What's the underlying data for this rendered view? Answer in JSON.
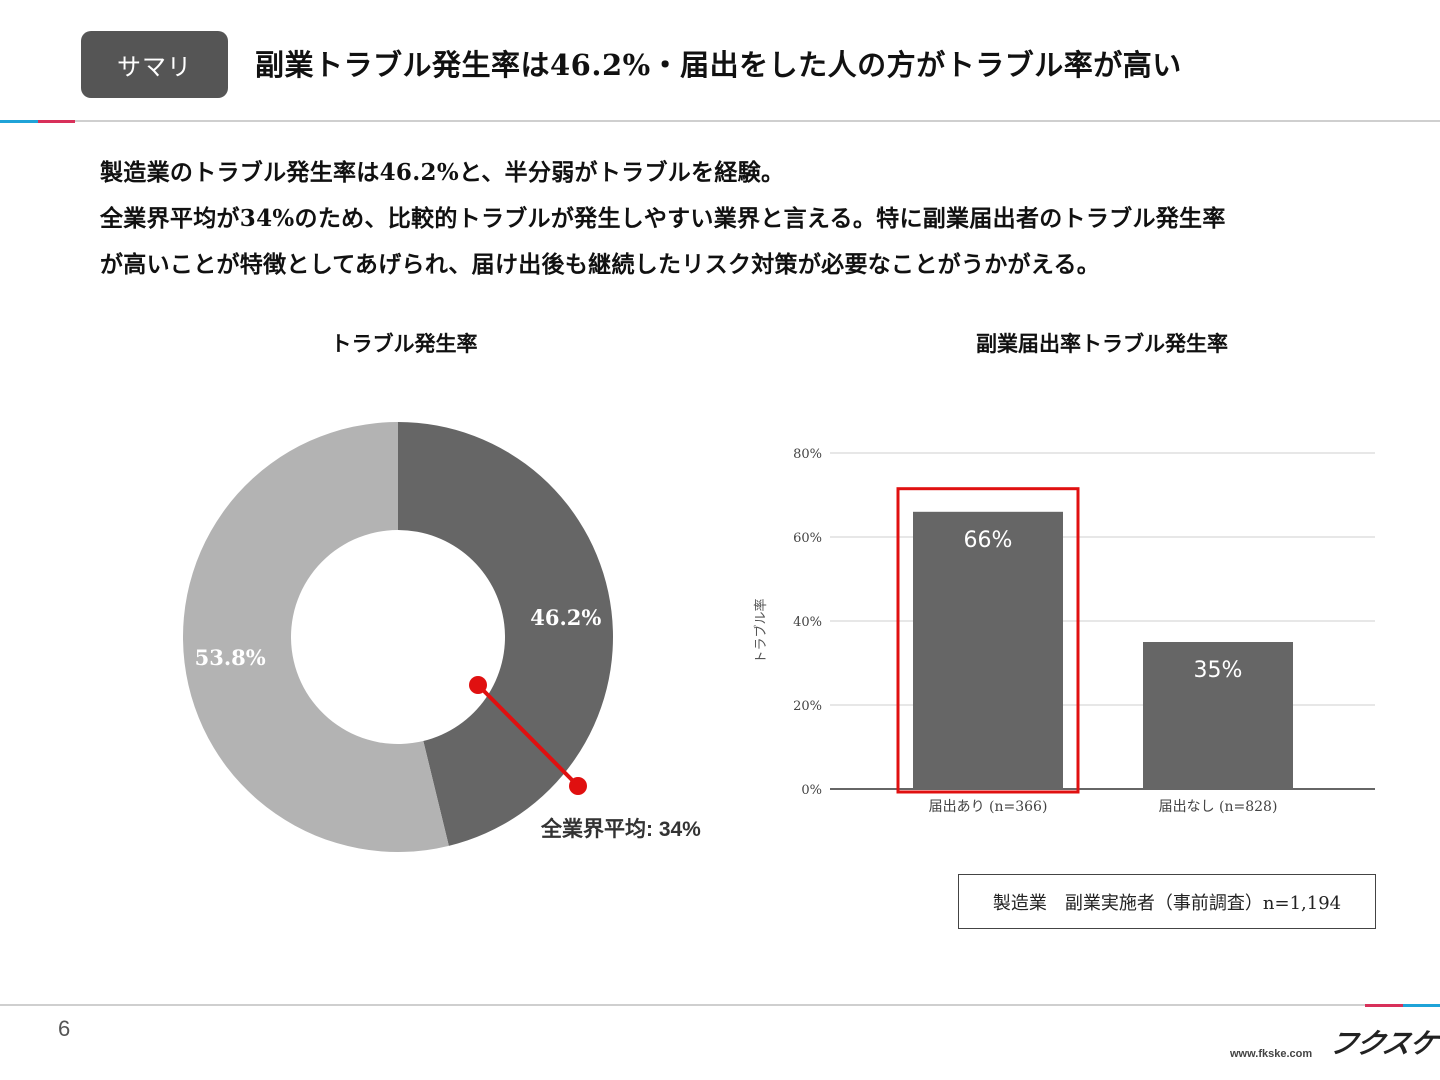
{
  "header": {
    "badge": "サマリ",
    "title": "副業トラブル発生率は46.2%・届出をした人の方がトラブル率が高い"
  },
  "body": {
    "lines": [
      "製造業のトラブル発生率は46.2%と、半分弱がトラブルを経験。",
      "全業界平均が34%のため、比較的トラブルが発生しやすい業界と言える。特に副業届出者のトラブル発生率",
      "が高いことが特徴としてあげられ、届け出後も継続したリスク対策が必要なことがうかがえる。"
    ]
  },
  "donut": {
    "title": "トラブル発生率",
    "average_label": "全業界平均: 34%"
  },
  "bar": {
    "title": "副業届出率トラブル発生率"
  },
  "legend_box": "製造業　副業実施者（事前調査）n=1,194",
  "colors": {
    "dark_gray": "#666666",
    "light_gray": "#b3b3b3",
    "highlight_red": "#e01010",
    "badge_bg": "#555555"
  },
  "footer": {
    "page": "6",
    "logo": "フクスケ",
    "url": "www.fkske.com"
  },
  "chart_data": [
    {
      "type": "pie",
      "variant": "donut",
      "title": "トラブル発生率",
      "slices": [
        {
          "label": "46.2%",
          "value": 46.2,
          "color": "#666666"
        },
        {
          "label": "53.8%",
          "value": 53.8,
          "color": "#b3b3b3"
        }
      ],
      "annotation": {
        "label": "全業界平均: 34%",
        "value": 34
      }
    },
    {
      "type": "bar",
      "title": "副業届出率トラブル発生率",
      "categories": [
        "届出あり (n=366)",
        "届出なし (n=828)"
      ],
      "values": [
        66,
        35
      ],
      "data_labels": [
        "66%",
        "35%"
      ],
      "ylabel": "トラブル率",
      "ylim": [
        0,
        80
      ],
      "yticks": [
        "0%",
        "20%",
        "40%",
        "60%",
        "80%"
      ],
      "grid": true,
      "highlight": "届出あり (n=366)",
      "bar_color": "#666666"
    }
  ]
}
